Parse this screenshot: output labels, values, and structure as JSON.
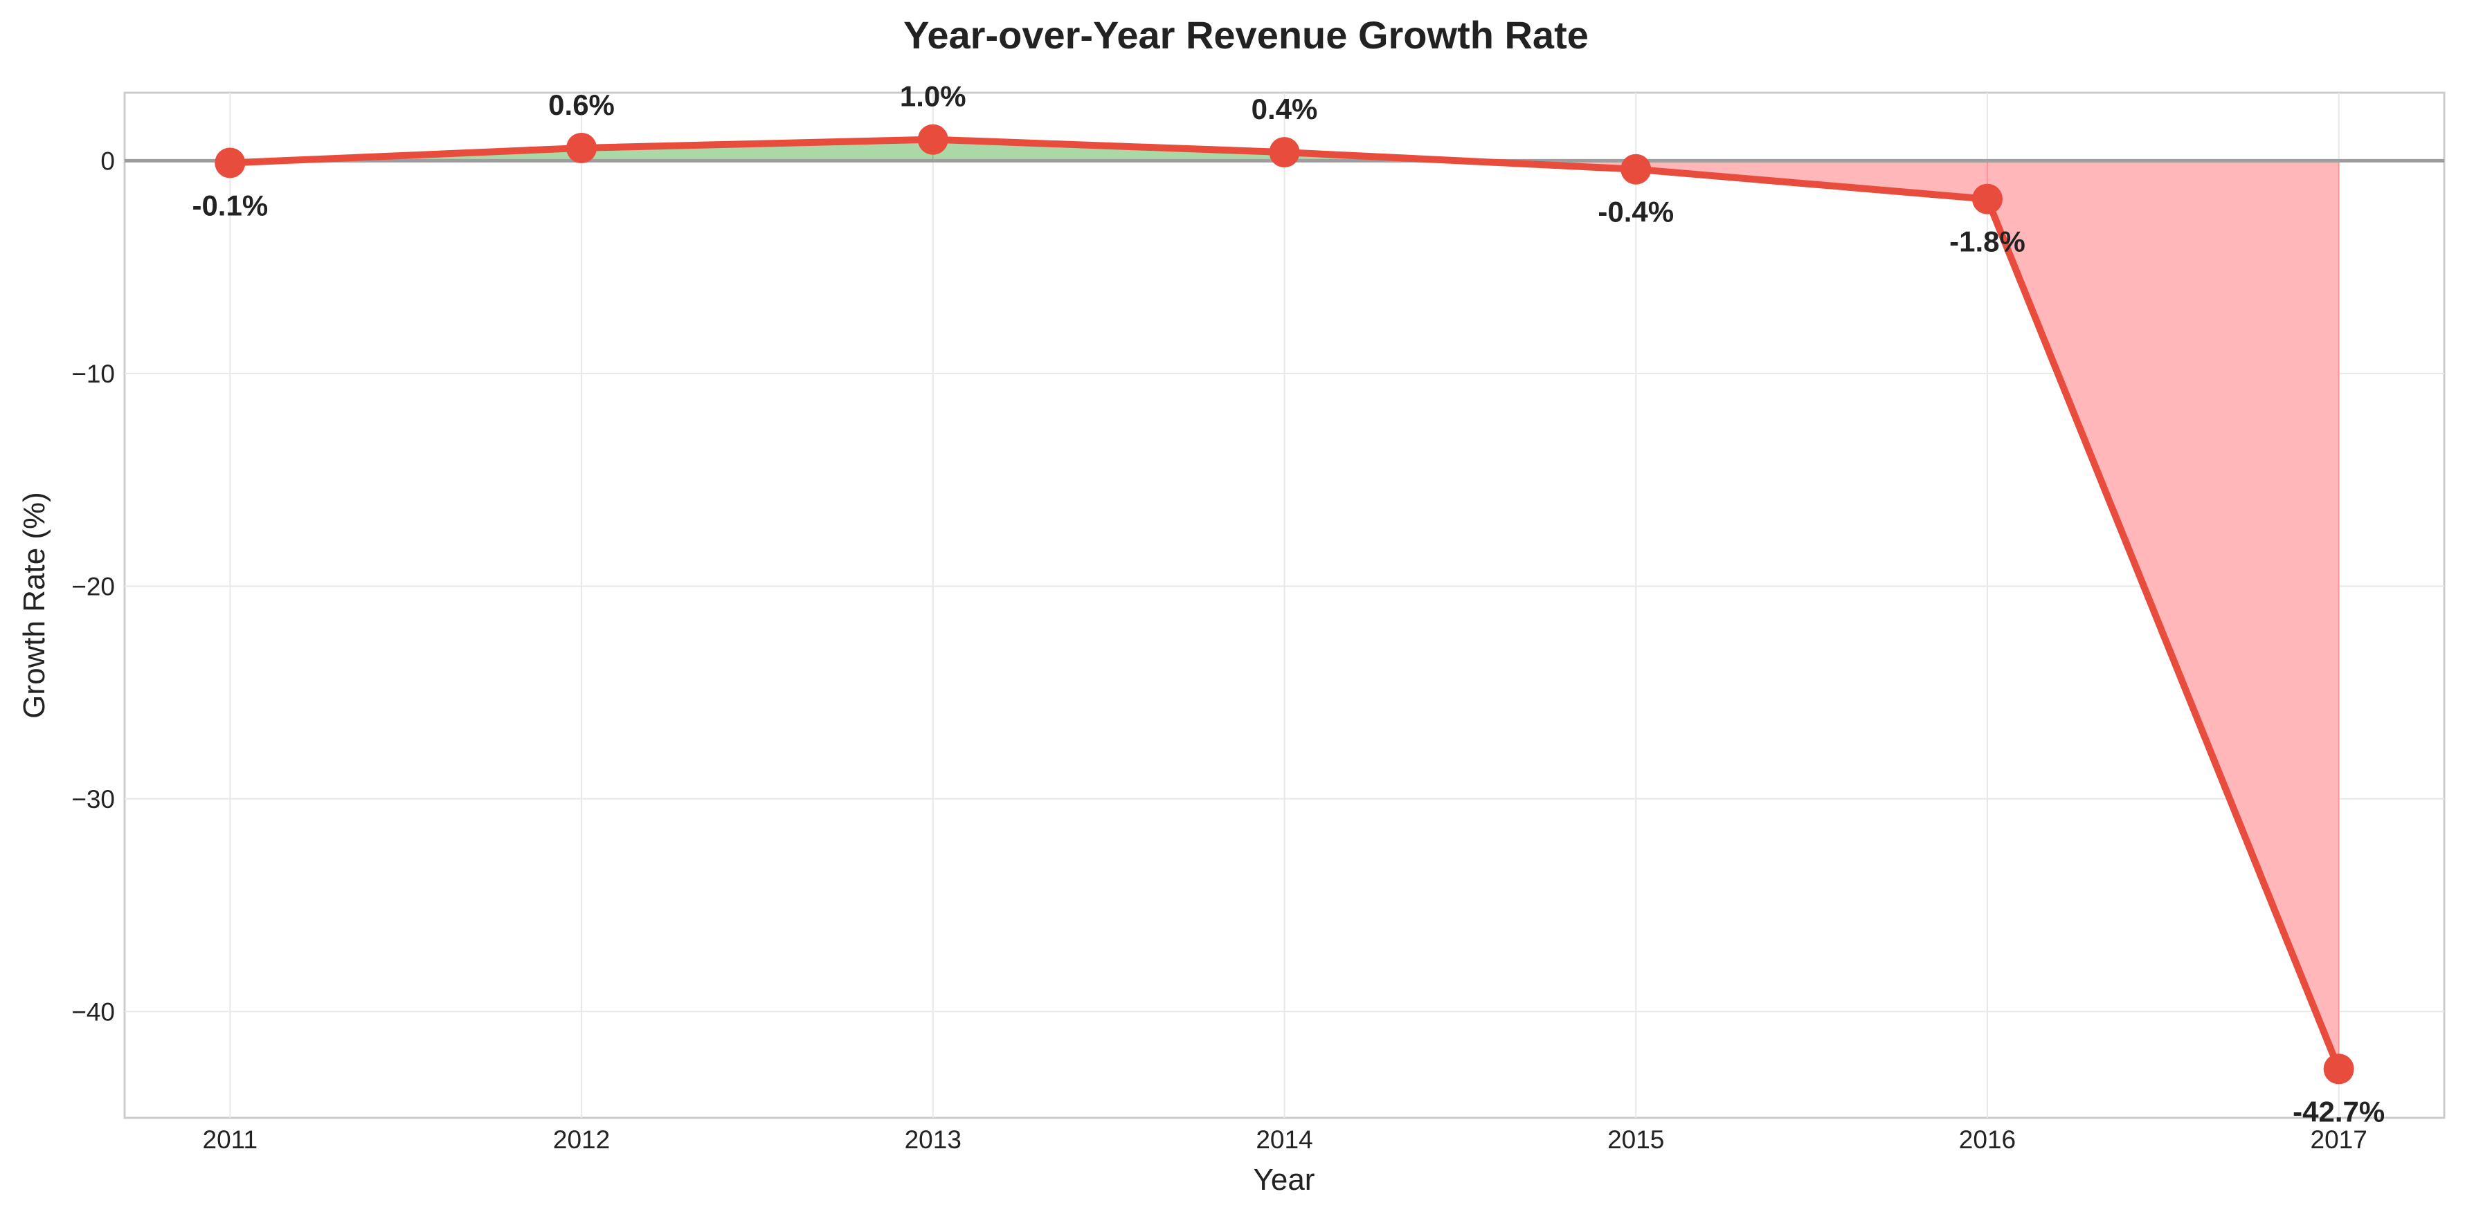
{
  "chart_data": {
    "type": "line",
    "title": "Year-over-Year Revenue Growth Rate",
    "xlabel": "Year",
    "ylabel": "Growth Rate (%)",
    "categories": [
      "2011",
      "2012",
      "2013",
      "2014",
      "2015",
      "2016",
      "2017"
    ],
    "series": [
      {
        "values": [
          -0.1,
          0.6,
          1.0,
          0.4,
          -0.4,
          -1.8,
          -42.7
        ],
        "data_labels": [
          "-0.1%",
          "0.6%",
          "1.0%",
          "0.4%",
          "-0.4%",
          "-1.8%",
          "-42.7%"
        ]
      }
    ],
    "yticks": [
      0,
      -10,
      -20,
      -30,
      -40
    ],
    "ytick_labels": [
      "0",
      "−10",
      "−20",
      "−30",
      "−40"
    ],
    "ylim": [
      -45,
      3.2
    ],
    "xlim": [
      2010.7,
      2017.3
    ],
    "grid": true,
    "zero_line": true,
    "fill_positive_color": "#a8d5a2",
    "fill_negative_color": "#ffb3b6",
    "line_color": "#e74c3c",
    "marker_color": "#e74c3c",
    "zero_line_color": "#9e9e9e"
  }
}
